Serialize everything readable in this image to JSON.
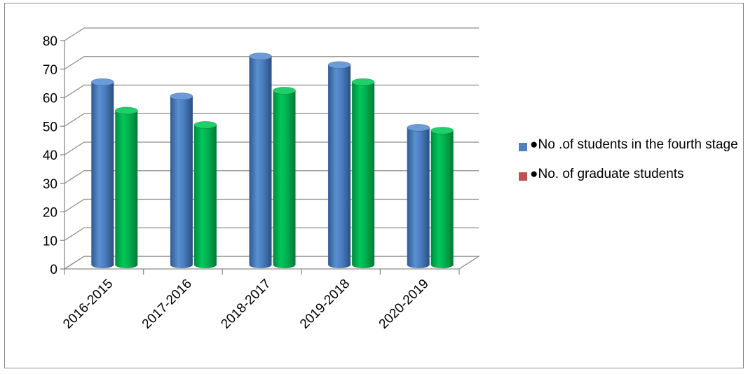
{
  "chart_data": {
    "type": "bar",
    "style": "3d-cylinder",
    "categories": [
      "2016-2015",
      "2017-2016",
      "2018-2017",
      "2019-2018",
      "2020-2019"
    ],
    "series": [
      {
        "name": "●No .of students in the fourth stage",
        "values": [
          64,
          59,
          73,
          70,
          48
        ],
        "color": "#4f81bd",
        "legend_color": "#4f81bd"
      },
      {
        "name": "●No. of graduate students",
        "values": [
          54,
          49,
          61,
          64,
          47
        ],
        "color": "#00b050",
        "legend_color": "#c0504d"
      }
    ],
    "yticks": [
      "0",
      "10",
      "20",
      "30",
      "40",
      "50",
      "60",
      "70",
      "80"
    ],
    "ylim": [
      0,
      80
    ],
    "grid": true,
    "legend_position": "right"
  }
}
